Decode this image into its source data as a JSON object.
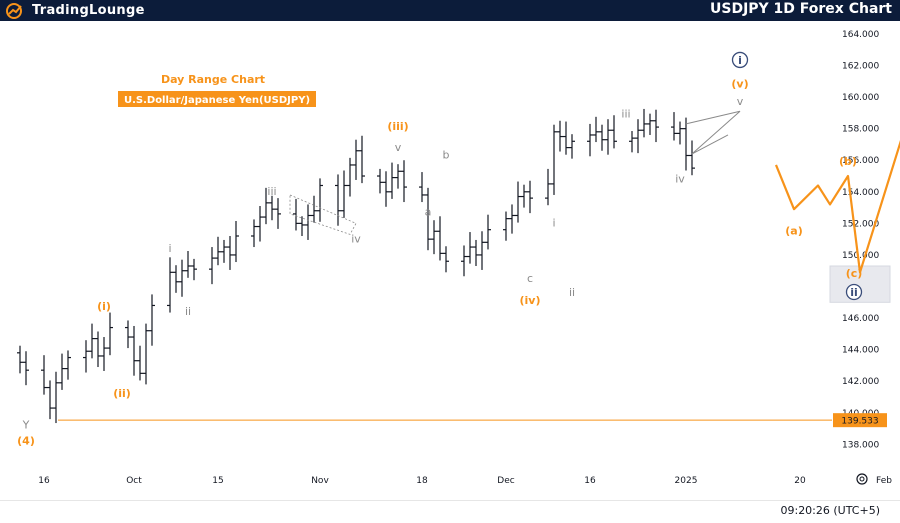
{
  "header": {
    "logo_text": "TradingLounge",
    "title": "USDJPY 1D Forex Chart"
  },
  "subtitle": {
    "line1": "Day Range Chart",
    "line2": "U.S.Dollar/Japanese Yen(USDJPY)"
  },
  "footer": {
    "clock": "09:20:26 (UTC+5)",
    "settings_icon": "gear-icon"
  },
  "colors": {
    "bar": "#131722",
    "orange": "#f7931a",
    "gray": "#8a8a8a",
    "navy": "#3a4d7a",
    "header_bg": "#0c1c3a"
  },
  "chart_data": {
    "type": "ohlc",
    "ylim": [
      137.2,
      165.2
    ],
    "x_ticks": [
      {
        "label": "16",
        "date": "2024-09-16"
      },
      {
        "label": "Oct",
        "date": "2024-10-01"
      },
      {
        "label": "15",
        "date": "2024-10-15"
      },
      {
        "label": "Nov",
        "date": "2024-11-01"
      },
      {
        "label": "18",
        "date": "2024-11-18"
      },
      {
        "label": "Dec",
        "date": "2024-12-02"
      },
      {
        "label": "16",
        "date": "2024-12-16"
      },
      {
        "label": "2025",
        "date": "2025-01-01"
      },
      {
        "label": "20",
        "date": "2025-01-20"
      },
      {
        "label": "Feb",
        "date": "2025-02-03"
      }
    ],
    "y_ticks": [
      "138.000",
      "140.000",
      "142.000",
      "144.000",
      "146.000",
      "148.000",
      "150.000",
      "152.000",
      "154.000",
      "156.000",
      "158.000",
      "160.000",
      "162.000",
      "164.000"
    ],
    "price_line": {
      "value": 139.533,
      "label": "139.533"
    },
    "closes": [
      143.2,
      142.7,
      141.6,
      140.3,
      141.9,
      142.8,
      143.5,
      143.9,
      144.7,
      143.6,
      144.1,
      145.4,
      144.8,
      143.3,
      142.5,
      145.2,
      146.8,
      148.9,
      148.3,
      149.0,
      149.3,
      149.1,
      149.8,
      150.2,
      150.5,
      150.0,
      151.2,
      151.8,
      152.4,
      153.3,
      152.9,
      152.6,
      152.0,
      151.9,
      152.5,
      152.8,
      154.4,
      152.8,
      154.4,
      155.7,
      156.6,
      155.0,
      154.6,
      154.0,
      154.9,
      155.3,
      154.3,
      153.8,
      151.0,
      151.5,
      150.1,
      149.6,
      149.9,
      150.5,
      150.0,
      150.8,
      151.6,
      152.3,
      152.5,
      153.7,
      154.0,
      153.6,
      154.5,
      157.8,
      157.5,
      156.8,
      157.2,
      157.6,
      157.8,
      157.3,
      157.9,
      157.2,
      157.4,
      157.9,
      158.3,
      158.5,
      158.1,
      157.7,
      158.0,
      156.3,
      155.5
    ],
    "wave_labels": [
      {
        "text": "(4)",
        "x": "2024-09-13",
        "y": 138.0,
        "color": "orange"
      },
      {
        "text": "Y",
        "x": "2024-09-13",
        "y": 139.0,
        "color": "gray"
      },
      {
        "text": "(i)",
        "x": "2024-09-26",
        "y": 146.5,
        "color": "orange"
      },
      {
        "text": "(ii)",
        "x": "2024-09-29",
        "y": 141.0,
        "color": "orange"
      },
      {
        "text": "i",
        "x": "2024-10-07",
        "y": 150.2,
        "color": "gray"
      },
      {
        "text": "ii",
        "x": "2024-10-10",
        "y": 146.2,
        "color": "gray"
      },
      {
        "text": "iii",
        "x": "2024-10-24",
        "y": 153.8,
        "color": "gray"
      },
      {
        "text": "iv",
        "x": "2024-11-07",
        "y": 150.8,
        "color": "gray"
      },
      {
        "text": "v",
        "x": "2024-11-14",
        "y": 156.6,
        "color": "gray"
      },
      {
        "text": "(iii)",
        "x": "2024-11-14",
        "y": 157.9,
        "color": "orange"
      },
      {
        "text": "a",
        "x": "2024-11-19",
        "y": 152.5,
        "color": "gray"
      },
      {
        "text": "b",
        "x": "2024-11-22",
        "y": 156.1,
        "color": "gray"
      },
      {
        "text": "c",
        "x": "2024-12-06",
        "y": 148.3,
        "color": "gray"
      },
      {
        "text": "(iv)",
        "x": "2024-12-06",
        "y": 146.9,
        "color": "orange"
      },
      {
        "text": "i",
        "x": "2024-12-10",
        "y": 151.8,
        "color": "gray"
      },
      {
        "text": "ii",
        "x": "2024-12-13",
        "y": 147.4,
        "color": "gray"
      },
      {
        "text": "iii",
        "x": "2024-12-22",
        "y": 158.7,
        "color": "gray"
      },
      {
        "text": "iv",
        "x": "2024-12-31",
        "y": 154.6,
        "color": "gray"
      },
      {
        "text": "v",
        "x": "2025-01-10",
        "y": 159.5,
        "color": "gray"
      },
      {
        "text": "(v)",
        "x": "2025-01-10",
        "y": 160.6,
        "color": "orange"
      },
      {
        "text": "i",
        "x": "2025-01-10",
        "y": 162.1,
        "color": "navy",
        "circled": true
      },
      {
        "text": "(a)",
        "x": "2025-01-19",
        "y": 151.3,
        "color": "orange"
      },
      {
        "text": "(b)",
        "x": "2025-01-28",
        "y": 155.7,
        "color": "orange"
      },
      {
        "text": "(c)",
        "x": "2025-01-29",
        "y": 148.6,
        "color": "orange"
      },
      {
        "text": "ii",
        "x": "2025-01-29",
        "y": 147.4,
        "color": "navy",
        "circled": true
      }
    ],
    "projection": [
      {
        "x": "2025-01-16",
        "y": 155.7
      },
      {
        "x": "2025-01-19",
        "y": 152.9
      },
      {
        "x": "2025-01-23",
        "y": 154.4
      },
      {
        "x": "2025-01-25",
        "y": 153.2
      },
      {
        "x": "2025-01-28",
        "y": 155.0
      },
      {
        "x": "2025-01-30",
        "y": 148.9
      },
      {
        "x": "2025-02-08",
        "y": 159.9
      }
    ],
    "target_zone": {
      "x_from": "2025-01-25",
      "x_to": "2025-02-04",
      "y_from": 147.0,
      "y_to": 149.3
    }
  }
}
